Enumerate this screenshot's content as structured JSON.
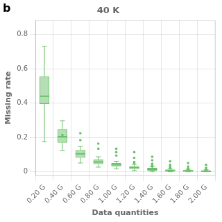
{
  "chart_data": {
    "type": "box",
    "title": "40 K",
    "panel_label": "b",
    "xlabel": "Data quantities",
    "ylabel": "Missing rate",
    "categories": [
      "0.20 G",
      "0.40 G",
      "0.60 G",
      "0.80 G",
      "1.00 G",
      "1.20 G",
      "1.40 G",
      "1.60 G",
      "1.80 G",
      "2.00 G"
    ],
    "boxes": [
      {
        "q1": 0.395,
        "median": 0.44,
        "q3": 0.555,
        "whislo": 0.175,
        "whishi": 0.73,
        "fliers": []
      },
      {
        "q1": 0.17,
        "median": 0.205,
        "q3": 0.248,
        "whislo": 0.125,
        "whishi": 0.298,
        "fliers": [
          0.215
        ]
      },
      {
        "q1": 0.082,
        "median": 0.105,
        "q3": 0.128,
        "whislo": 0.052,
        "whishi": 0.148,
        "fliers": [
          0.225,
          0.185
        ]
      },
      {
        "q1": 0.046,
        "median": 0.058,
        "q3": 0.072,
        "whislo": 0.028,
        "whishi": 0.088,
        "fliers": [
          0.165,
          0.135
        ]
      },
      {
        "q1": 0.033,
        "median": 0.042,
        "q3": 0.052,
        "whislo": 0.018,
        "whishi": 0.062,
        "fliers": [
          0.135,
          0.115,
          0.095
        ]
      },
      {
        "q1": 0.018,
        "median": 0.026,
        "q3": 0.034,
        "whislo": 0.008,
        "whishi": 0.044,
        "fliers": [
          0.115,
          0.082,
          0.058,
          0.052
        ]
      },
      {
        "q1": 0.008,
        "median": 0.016,
        "q3": 0.024,
        "whislo": 0.002,
        "whishi": 0.03,
        "fliers": [
          0.088,
          0.068,
          0.048,
          0.038,
          0.032
        ]
      },
      {
        "q1": 0.004,
        "median": 0.009,
        "q3": 0.014,
        "whislo": 0.001,
        "whishi": 0.018,
        "fliers": [
          0.062,
          0.042,
          0.032,
          0.028,
          0.022
        ]
      },
      {
        "q1": 0.003,
        "median": 0.007,
        "q3": 0.011,
        "whislo": 0.001,
        "whishi": 0.015,
        "fliers": [
          0.052,
          0.032,
          0.022,
          0.018
        ]
      },
      {
        "q1": 0.002,
        "median": 0.005,
        "q3": 0.009,
        "whislo": 0.001,
        "whishi": 0.012,
        "fliers": [
          0.042,
          0.025,
          0.015,
          0.012
        ]
      }
    ],
    "color": "#6abf6a",
    "ylim": [
      -0.02,
      0.88
    ],
    "yticks": [
      0,
      0.2,
      0.4,
      0.6,
      0.8
    ],
    "grid": true
  }
}
